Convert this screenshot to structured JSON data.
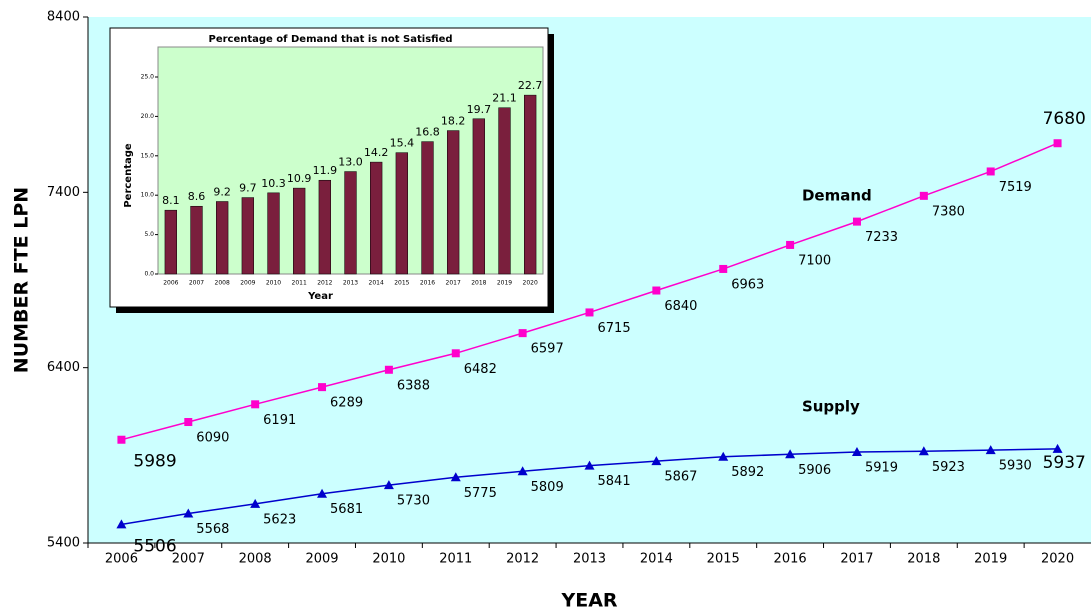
{
  "chart_data": [
    {
      "type": "line",
      "y_label": "NUMBER FTE LPN",
      "x_label": "YEAR",
      "categories": [
        "2006",
        "2007",
        "2008",
        "2009",
        "2010",
        "2011",
        "2012",
        "2013",
        "2014",
        "2015",
        "2016",
        "2017",
        "2018",
        "2019",
        "2020"
      ],
      "series": [
        {
          "name": "Demand",
          "color": "#ff00cc",
          "marker": "square",
          "values": [
            5989,
            6090,
            6191,
            6289,
            6388,
            6482,
            6597,
            6715,
            6840,
            6963,
            7100,
            7233,
            7380,
            7519,
            7680
          ]
        },
        {
          "name": "Supply",
          "color": "#0000cc",
          "marker": "triangle",
          "values": [
            5506,
            5568,
            5623,
            5681,
            5730,
            5775,
            5809,
            5841,
            5867,
            5892,
            5906,
            5919,
            5923,
            5930,
            5937
          ]
        }
      ],
      "ylim": [
        5400,
        8400
      ],
      "yticks": [
        5400,
        6400,
        7400,
        8400
      ],
      "grid": false,
      "background": "#ccffff"
    },
    {
      "type": "bar",
      "title": "Percentage of Demand that is not Satisfied",
      "y_label": "Percentage",
      "x_label": "Year",
      "categories": [
        "2006",
        "2007",
        "2008",
        "2009",
        "2010",
        "2011",
        "2012",
        "2013",
        "2014",
        "2015",
        "2016",
        "2017",
        "2018",
        "2019",
        "2020"
      ],
      "values": [
        8.1,
        8.6,
        9.2,
        9.7,
        10.3,
        10.9,
        11.9,
        13.0,
        14.2,
        15.4,
        16.8,
        18.2,
        19.7,
        21.1,
        22.7
      ],
      "value_labels": [
        "8.1",
        "8.6",
        "9.2",
        "9.7",
        "10.3",
        "10.9",
        "11.9",
        "13.0",
        "14.2",
        "15.4",
        "16.8",
        "18.2",
        "19.7",
        "21.1",
        "22.7"
      ],
      "color": "#7a1f3d",
      "background": "#ccffcc",
      "ylim": [
        0,
        25
      ],
      "yticks": [
        {
          "value": 0,
          "label": "0.0"
        },
        {
          "value": 5,
          "label": "5.0"
        },
        {
          "value": 10,
          "label": "10.0"
        },
        {
          "value": 15,
          "label": "15.0"
        },
        {
          "value": 20,
          "label": "20.0"
        },
        {
          "value": 25,
          "label": "25.0"
        }
      ]
    }
  ]
}
